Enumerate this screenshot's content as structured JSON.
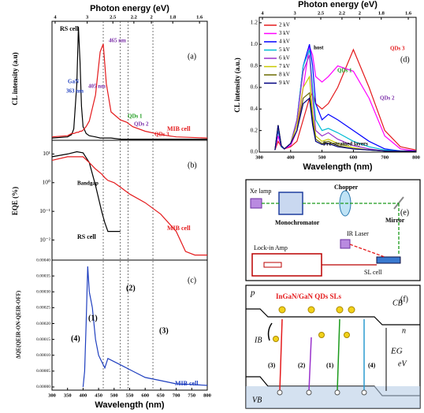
{
  "chart_data": [
    {
      "type": "line",
      "panel_label": "(a)",
      "ylabel": "CL intensity (a.u)",
      "x2label": "Photon energy (eV)",
      "x2ticks": [
        4,
        3,
        2.5,
        2.2,
        2,
        1.8,
        1.6
      ],
      "xlim": [
        300,
        800
      ],
      "ylim": [
        0,
        1.05
      ],
      "vlines": [
        465,
        520,
        545,
        625
      ],
      "x": [
        300,
        350,
        363,
        370,
        380,
        385,
        390,
        395,
        400,
        410,
        420,
        440,
        455,
        465,
        475,
        490,
        520,
        540,
        560,
        600,
        650,
        700,
        800
      ],
      "series": [
        {
          "name": "RS cell",
          "color": "#000000",
          "values": [
            0.02,
            0.03,
            0.05,
            0.1,
            0.5,
            1.0,
            0.7,
            0.3,
            0.12,
            0.06,
            0.04,
            0.03,
            0.02,
            0.02,
            0.02,
            0.02,
            0.01,
            0.01,
            0.01,
            0.01,
            0.01,
            0.01,
            0.01
          ]
        },
        {
          "name": "MIB cell",
          "color": "#e41a1c",
          "values": [
            0.03,
            0.04,
            0.06,
            0.06,
            0.07,
            0.07,
            0.08,
            0.08,
            0.09,
            0.12,
            0.17,
            0.4,
            0.78,
            0.85,
            0.5,
            0.25,
            0.18,
            0.16,
            0.12,
            0.08,
            0.05,
            0.03,
            0.02
          ]
        }
      ],
      "annotations": [
        {
          "text": "GaN",
          "color": "#1f3fbf"
        },
        {
          "text": "363 nm",
          "color": "#1f3fbf"
        },
        {
          "text": "405 nm",
          "color": "#7b2fa8"
        },
        {
          "text": "465 nm",
          "color": "#7b2fa8"
        },
        {
          "text": "QDs 1",
          "color": "#1a9a1a"
        },
        {
          "text": "QDs 2",
          "color": "#7b2fa8"
        },
        {
          "text": "QDs 3",
          "color": "#e41a1c"
        }
      ]
    },
    {
      "type": "line",
      "panel_label": "(b)",
      "ylabel": "EQE (%)",
      "log_y": true,
      "xlim": [
        300,
        800
      ],
      "ylim": [
        0.002,
        30
      ],
      "yticks": [
        {
          "value": 10,
          "label": "10¹"
        },
        {
          "value": 1,
          "label": "10⁰"
        },
        {
          "value": 0.1,
          "label": "10⁻¹"
        },
        {
          "value": 0.01,
          "label": "10⁻²"
        }
      ],
      "x": [
        300,
        350,
        380,
        400,
        420,
        440,
        460,
        470,
        480,
        500,
        520,
        550,
        600,
        650,
        700,
        730,
        760,
        800
      ],
      "series": [
        {
          "name": "RS cell",
          "color": "#000000",
          "values": [
            8,
            10,
            12,
            11,
            5,
            0.8,
            0.1,
            0.04,
            0.02,
            0.02,
            0.02,
            null,
            null,
            null,
            null,
            null,
            null,
            null
          ]
        },
        {
          "name": "MIB cell",
          "color": "#e41a1c",
          "values": [
            6,
            8,
            8,
            8,
            5,
            3,
            2,
            1.5,
            1.2,
            1,
            0.7,
            0.4,
            0.2,
            0.08,
            0.02,
            0.004,
            0.003,
            0.003
          ]
        }
      ],
      "annotations": [
        {
          "text": "Bandgap",
          "color": "#000000"
        }
      ]
    },
    {
      "type": "line",
      "panel_label": "(c)",
      "ylabel": "ΔQE(QEIR-ON-QEIR-OFF)",
      "xlabel": "Wavelength (nm)",
      "xlim": [
        300,
        800
      ],
      "ylim": [
        -1e-05,
        0.0004
      ],
      "xticks": [
        300,
        350,
        400,
        450,
        500,
        550,
        600,
        650,
        700,
        750,
        800
      ],
      "yticks": [
        {
          "value": 0,
          "label": "0.00000"
        },
        {
          "value": 5e-05,
          "label": "0.00005"
        },
        {
          "value": 0.0001,
          "label": "0.00010"
        },
        {
          "value": 0.00015,
          "label": "0.00015"
        },
        {
          "value": 0.0002,
          "label": "0.00020"
        },
        {
          "value": 0.00025,
          "label": "0.00025"
        },
        {
          "value": 0.0003,
          "label": "0.00030"
        },
        {
          "value": 0.00035,
          "label": "0.00035"
        },
        {
          "value": 0.0004,
          "label": "0.00040"
        }
      ],
      "x": [
        400,
        405,
        410,
        415,
        420,
        430,
        440,
        450,
        460,
        470,
        480,
        500,
        520,
        560,
        600,
        650,
        700,
        750,
        800
      ],
      "series": [
        {
          "name": "MIB cell",
          "color": "#1f3fbf",
          "values": [
            0,
            5e-05,
            0.0002,
            0.00038,
            0.0003,
            0.00025,
            0.00015,
            0.0001,
            8e-05,
            6e-05,
            9e-05,
            8e-05,
            7e-05,
            5e-05,
            3e-05,
            2e-05,
            1e-05,
            8e-06,
            5e-06
          ]
        }
      ],
      "annotations": [
        {
          "text": "(1)",
          "color": "#000000"
        },
        {
          "text": "(2)",
          "color": "#000000"
        },
        {
          "text": "(3)",
          "color": "#000000"
        },
        {
          "text": "(4)",
          "color": "#000000"
        }
      ]
    },
    {
      "type": "line",
      "panel_label": "(d)",
      "ylabel": "CL intensity (a.u.)",
      "xlabel": "Wavelength (nm)",
      "x2label": "Photon energy (eV)",
      "legend": "upper left",
      "x2ticks": [
        4,
        3,
        2.5,
        2.2,
        2,
        1.8,
        1.6
      ],
      "xlim": [
        300,
        800
      ],
      "ylim": [
        0,
        1.25
      ],
      "xticks": [
        300,
        400,
        500,
        600,
        700,
        800
      ],
      "yticks": [
        {
          "value": 0,
          "label": "0.0"
        },
        0.2,
        0.4,
        0.6,
        0.8,
        {
          "value": 1,
          "label": "1.0"
        },
        1.2
      ],
      "x": [
        350,
        360,
        370,
        380,
        400,
        420,
        440,
        460,
        470,
        480,
        500,
        520,
        550,
        600,
        650,
        700,
        750,
        800
      ],
      "series": [
        {
          "name": "2 kV",
          "color": "#e41a1c",
          "values": [
            0.02,
            0.1,
            0.05,
            0.03,
            0.05,
            0.1,
            0.3,
            0.5,
            0.55,
            0.45,
            0.4,
            0.45,
            0.6,
            0.95,
            0.6,
            0.2,
            0.05,
            0.02
          ]
        },
        {
          "name": "3 kV",
          "color": "#ff00ff",
          "values": [
            0.02,
            0.15,
            0.05,
            0.03,
            0.06,
            0.2,
            0.6,
            0.98,
            0.9,
            0.7,
            0.65,
            0.7,
            0.8,
            0.75,
            0.5,
            0.15,
            0.03,
            0.01
          ]
        },
        {
          "name": "4 kV",
          "color": "#0000ff",
          "values": [
            0.02,
            0.2,
            0.05,
            0.03,
            0.08,
            0.3,
            0.8,
            1.0,
            0.8,
            0.45,
            0.3,
            0.35,
            0.3,
            0.2,
            0.1,
            0.03,
            0.01,
            0.01
          ]
        },
        {
          "name": "5 kV",
          "color": "#00bcd4",
          "values": [
            0.02,
            0.22,
            0.05,
            0.03,
            0.08,
            0.3,
            0.8,
            0.95,
            0.6,
            0.3,
            0.2,
            0.22,
            0.18,
            0.1,
            0.05,
            0.02,
            0.01,
            0.01
          ]
        },
        {
          "name": "6 kV",
          "color": "#9932cc",
          "values": [
            0.02,
            0.24,
            0.06,
            0.03,
            0.08,
            0.3,
            0.75,
            0.9,
            0.5,
            0.2,
            0.15,
            0.18,
            0.12,
            0.06,
            0.03,
            0.01,
            0.01,
            0.01
          ]
        },
        {
          "name": "7 kV",
          "color": "#c8c800",
          "values": [
            0.02,
            0.25,
            0.06,
            0.03,
            0.08,
            0.25,
            0.6,
            0.7,
            0.35,
            0.15,
            0.1,
            0.12,
            0.08,
            0.04,
            0.02,
            0.01,
            0.01,
            0.01
          ]
        },
        {
          "name": "8 kV",
          "color": "#6b6b00",
          "values": [
            0.02,
            0.25,
            0.06,
            0.03,
            0.08,
            0.2,
            0.5,
            0.55,
            0.3,
            0.12,
            0.08,
            0.1,
            0.06,
            0.03,
            0.02,
            0.01,
            0.01,
            0.01
          ]
        },
        {
          "name": "9 kV",
          "color": "#000080",
          "values": [
            0.02,
            0.25,
            0.06,
            0.03,
            0.08,
            0.2,
            0.45,
            0.5,
            0.25,
            0.1,
            0.07,
            0.08,
            0.05,
            0.03,
            0.02,
            0.01,
            0.01,
            0.01
          ]
        }
      ],
      "annotations": [
        {
          "text": "host",
          "color": "#000000"
        },
        {
          "text": "QDs 1",
          "color": "#1a9a1a"
        },
        {
          "text": "QDs 3",
          "color": "#e41a1c"
        },
        {
          "text": "QDs 2",
          "color": "#7b2fa8"
        },
        {
          "text": "Pre-strained layers",
          "color": "#000000"
        }
      ]
    }
  ],
  "diagram_e": {
    "label": "(e)",
    "xe_lamp": "Xe lamp",
    "monochromator": "Monochromator",
    "chopper": "Chopper",
    "mirror": "Mirror",
    "ir_laser": "IR Laser",
    "lockin": "Lock-in Amp",
    "sl_cell": "SL cell"
  },
  "diagram_f": {
    "label": "(f)",
    "p": "p",
    "n": "n",
    "title": "InGaN/GaN QDs SLs",
    "cb": "CB",
    "ib": "IB",
    "vb": "VB",
    "eg": "EG",
    "ev": "eV",
    "t1": "(1)",
    "t2": "(2)",
    "t3": "(3)",
    "t4": "(4)"
  }
}
